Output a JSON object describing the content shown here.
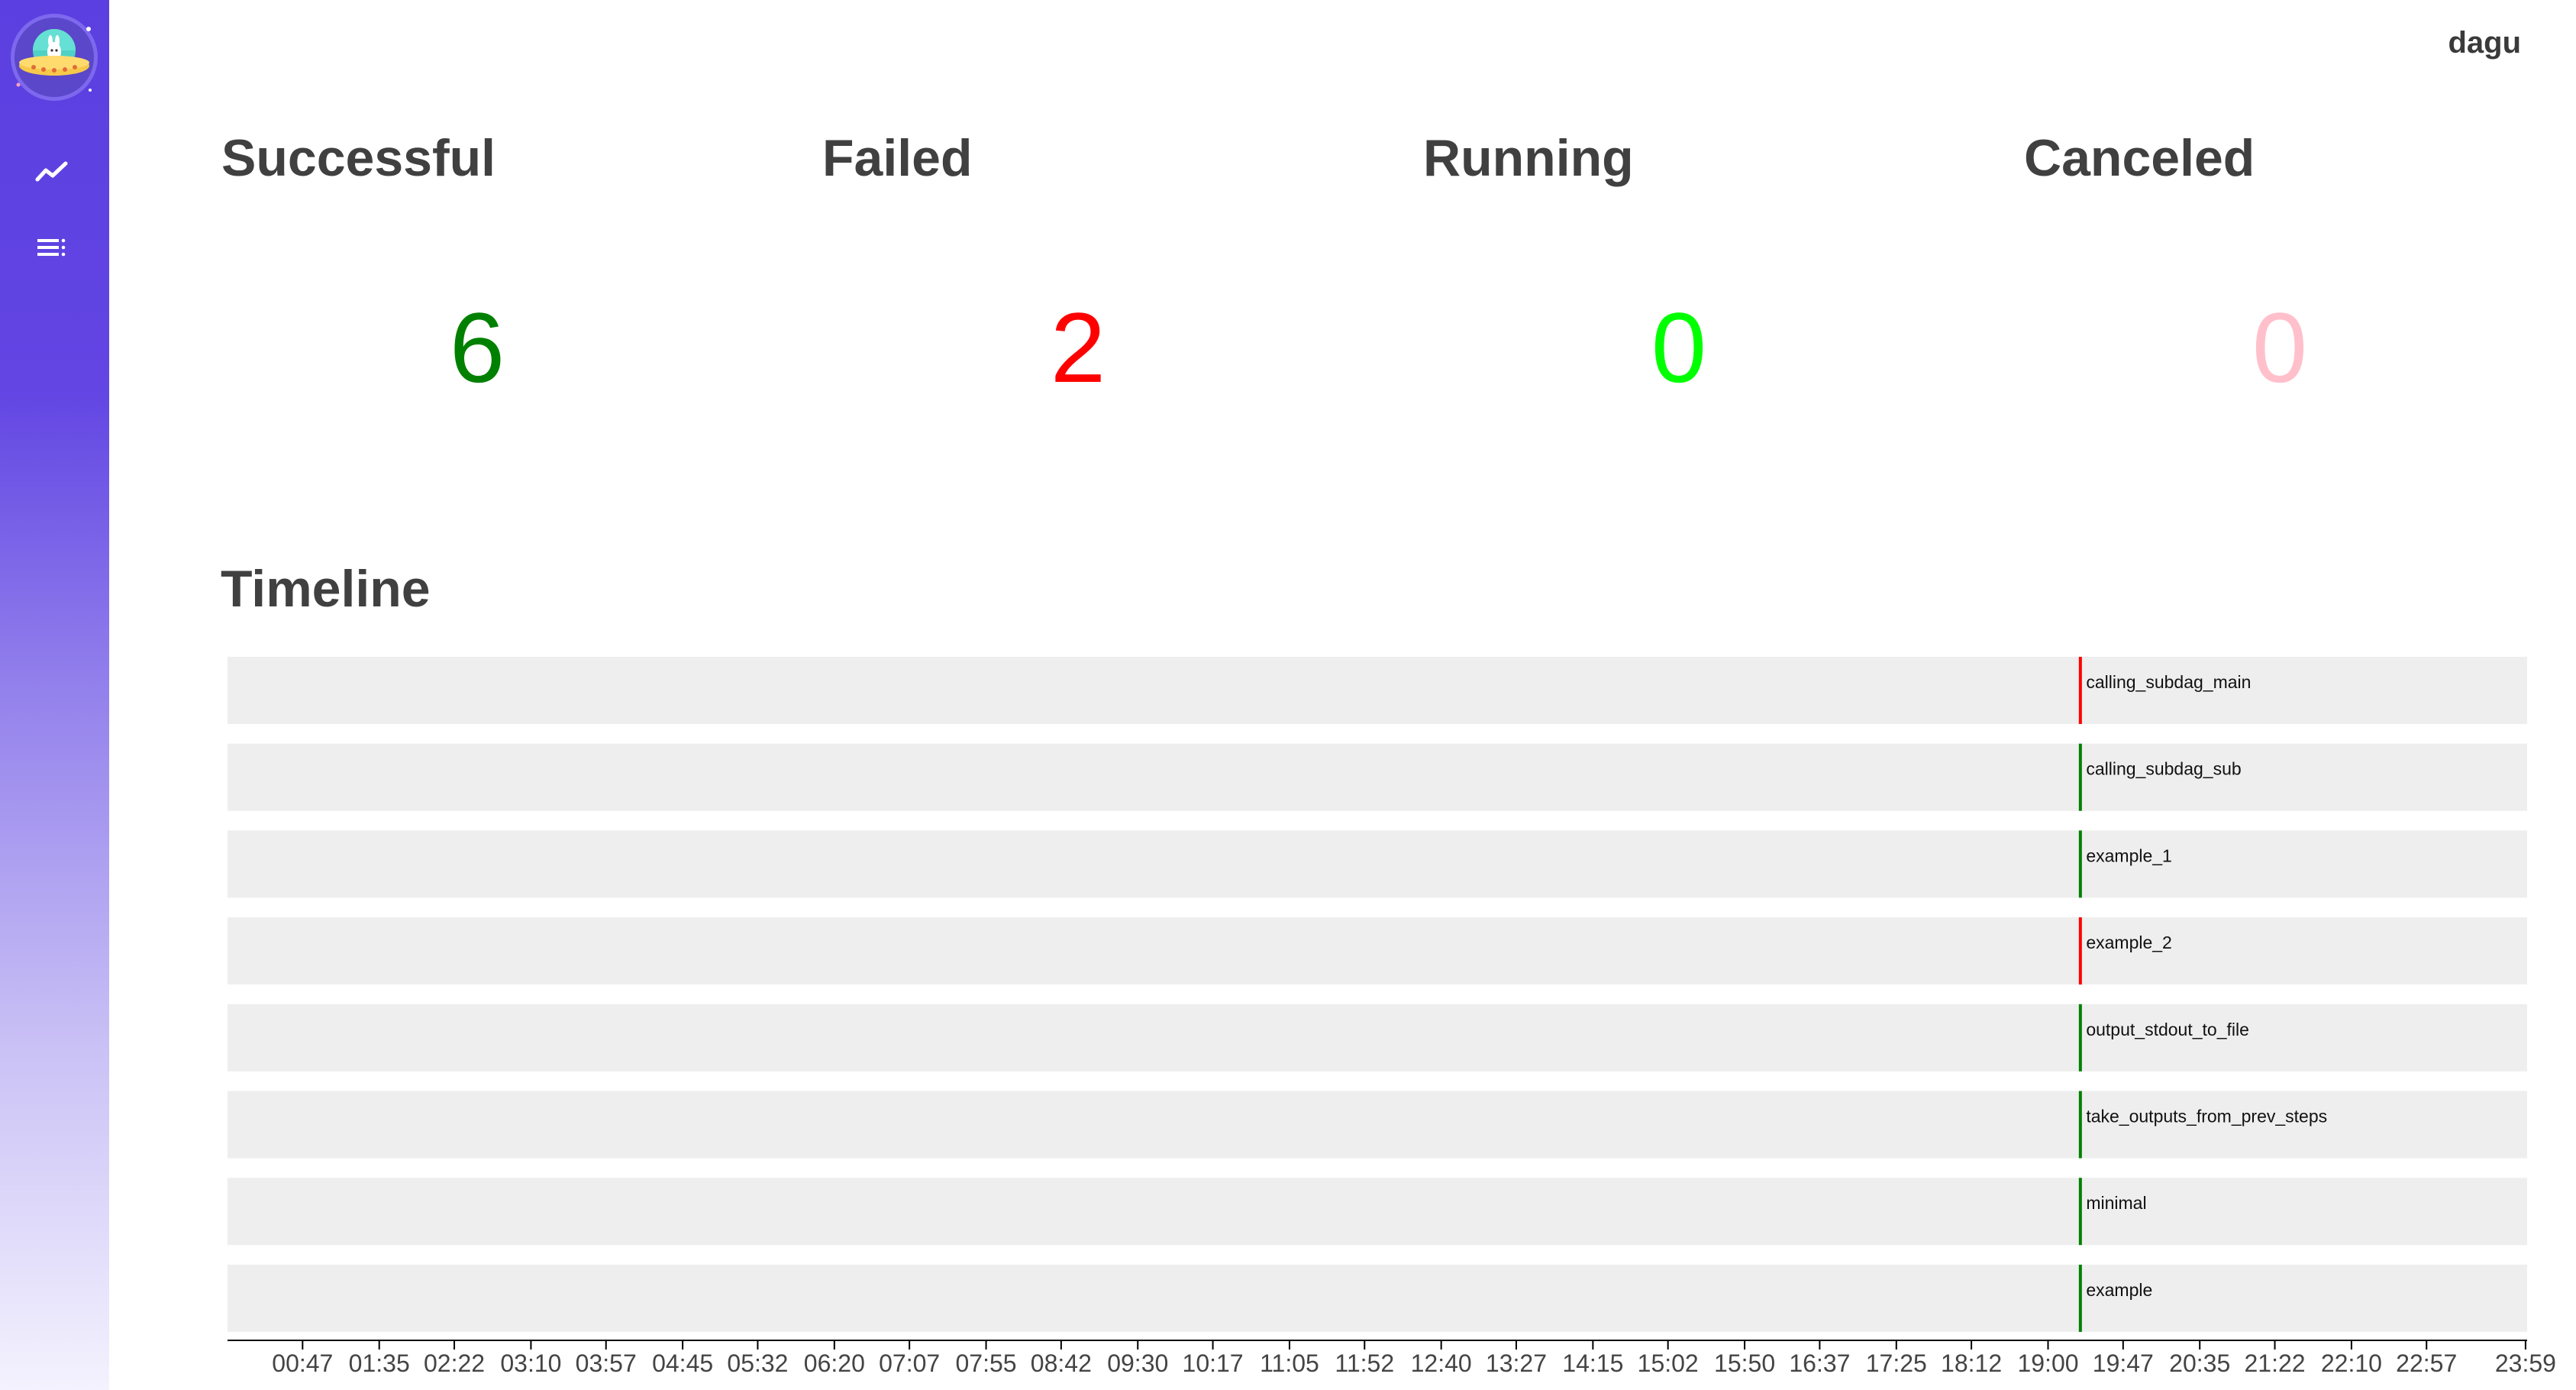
{
  "app": {
    "brand": "dagu",
    "nav": [
      {
        "name": "dashboard",
        "icon": "chart-line-icon"
      },
      {
        "name": "dags",
        "icon": "list-icon"
      }
    ]
  },
  "stats": [
    {
      "label": "Successful",
      "value": "6",
      "color": "#008000"
    },
    {
      "label": "Failed",
      "value": "2",
      "color": "#ff0000"
    },
    {
      "label": "Running",
      "value": "0",
      "color": "#00ff00"
    },
    {
      "label": "Canceled",
      "value": "0",
      "color": "#ffc0cb"
    }
  ],
  "timeline": {
    "title": "Timeline",
    "rows": [
      {
        "label": "calling_subdag_main",
        "status": "failed",
        "start": "19:20"
      },
      {
        "label": "calling_subdag_sub",
        "status": "successful",
        "start": "19:20"
      },
      {
        "label": "example_1",
        "status": "successful",
        "start": "19:20"
      },
      {
        "label": "example_2",
        "status": "failed",
        "start": "19:20"
      },
      {
        "label": "output_stdout_to_file",
        "status": "successful",
        "start": "19:20"
      },
      {
        "label": "take_outputs_from_prev_steps",
        "status": "successful",
        "start": "19:20"
      },
      {
        "label": "minimal",
        "status": "successful",
        "start": "19:20"
      },
      {
        "label": "example",
        "status": "successful",
        "start": "19:20"
      }
    ],
    "ticks": [
      "00:47",
      "01:35",
      "02:22",
      "03:10",
      "03:57",
      "04:45",
      "05:32",
      "06:20",
      "07:07",
      "07:55",
      "08:42",
      "09:30",
      "10:17",
      "11:05",
      "11:52",
      "12:40",
      "13:27",
      "14:15",
      "15:02",
      "15:50",
      "16:37",
      "17:25",
      "18:12",
      "19:00",
      "19:47",
      "20:35",
      "21:22",
      "22:10",
      "22:57",
      "23:59"
    ],
    "status_colors": {
      "successful": "#008000",
      "failed": "#ff0000"
    }
  }
}
